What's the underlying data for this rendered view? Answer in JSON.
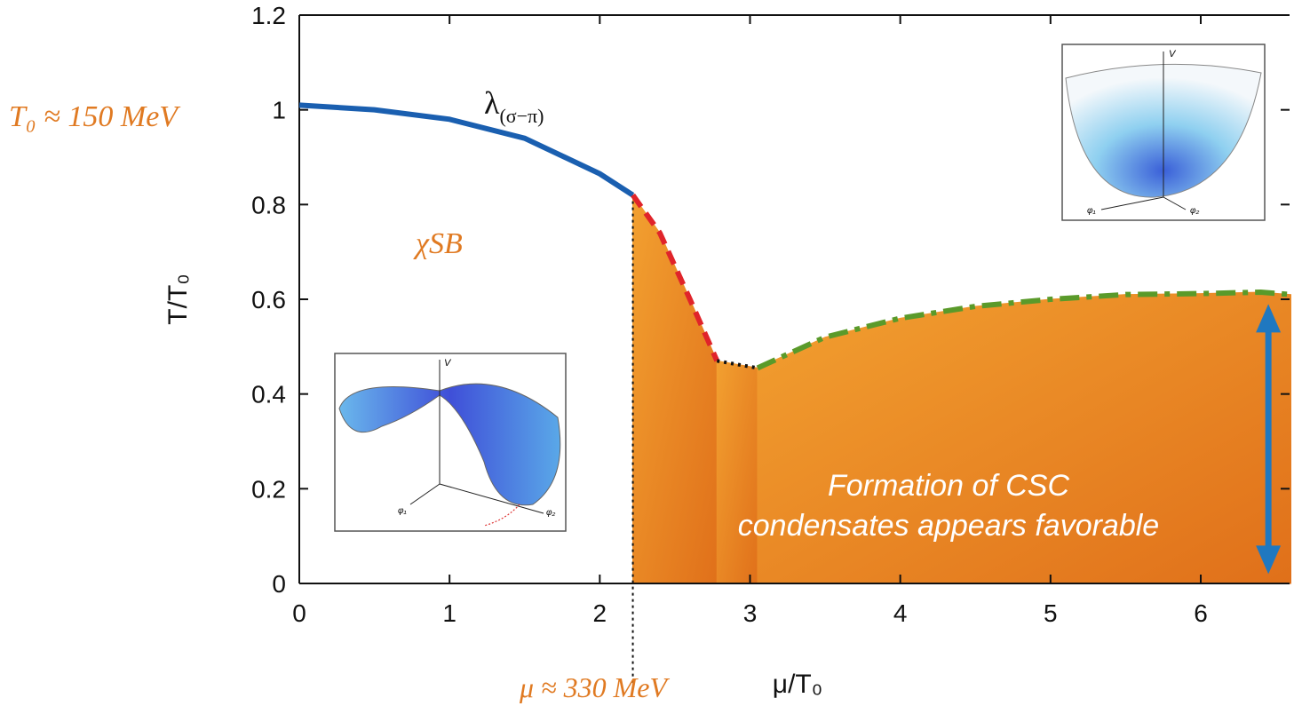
{
  "chart_data": {
    "type": "line",
    "ylabel": "T/T₀",
    "xlabel": "μ/T₀",
    "xlim": [
      0,
      6.6
    ],
    "ylim": [
      0,
      1.2
    ],
    "xticks": [
      0,
      1,
      2,
      3,
      4,
      5,
      6
    ],
    "yticks": [
      0,
      0.2,
      0.4,
      0.6,
      0.8,
      1,
      1.2
    ],
    "fill_color": "#e8861c",
    "series": [
      {
        "color": "#1a5fb0",
        "style": "solid",
        "fill": false,
        "x": [
          0,
          0.5,
          1,
          1.5,
          2,
          2.22
        ],
        "values": [
          1.01,
          1.0,
          0.98,
          0.94,
          0.865,
          0.82
        ]
      },
      {
        "color": "#e0242a",
        "style": "dashed",
        "fill": true,
        "x": [
          2.22,
          2.4,
          2.6,
          2.78
        ],
        "values": [
          0.82,
          0.74,
          0.6,
          0.47
        ]
      },
      {
        "color": "#111111",
        "style": "dotted",
        "fill": true,
        "x": [
          2.78,
          3.05
        ],
        "values": [
          0.47,
          0.455
        ]
      },
      {
        "color": "#5a9a2a",
        "style": "dashdot",
        "fill": true,
        "x": [
          3.05,
          3.5,
          4,
          4.5,
          5,
          5.5,
          6,
          6.4,
          6.6
        ],
        "values": [
          0.455,
          0.52,
          0.56,
          0.585,
          0.6,
          0.61,
          0.612,
          0.615,
          0.61
        ]
      }
    ],
    "vline": {
      "x": 2.22,
      "color": "#111111"
    },
    "arrow": {
      "x": 6.45,
      "y": [
        0.02,
        0.59
      ],
      "color": "#1f78c0"
    },
    "annotations": [
      {
        "text": "λ",
        "sub": "(σ−π)"
      },
      {
        "text": "χSB"
      },
      {
        "text": "T₀ ≈ 150 MeV"
      },
      {
        "text": "μ ≈ 330 MeV"
      },
      {
        "text": "Formation of CSC"
      },
      {
        "text": "condensates appears favorable"
      }
    ],
    "insets": [
      {
        "labels": [
          "V",
          "φ₁",
          "φ₂"
        ]
      },
      {
        "labels": [
          "V",
          "φ₁",
          "φ₂"
        ]
      }
    ]
  }
}
